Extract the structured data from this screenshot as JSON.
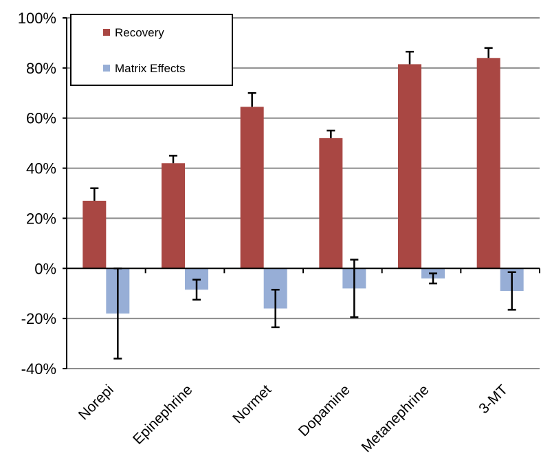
{
  "chart_data": {
    "type": "bar",
    "title": "",
    "xlabel": "",
    "ylabel": "",
    "categories": [
      "Norepi",
      "Epinephrine",
      "Normet",
      "Dopamine",
      "Metanephrine",
      "3-MT"
    ],
    "series": [
      {
        "name": "Recovery",
        "color": "#A94743",
        "values": [
          27,
          42,
          64.5,
          52,
          81.5,
          84
        ],
        "error": [
          5,
          3,
          5.5,
          3,
          5,
          4
        ]
      },
      {
        "name": "Matrix Effects",
        "color": "#97AED6",
        "values": [
          -18,
          -8.5,
          -16,
          -8,
          -4,
          -9
        ],
        "error": [
          18,
          4,
          7.5,
          11.5,
          2,
          7.5
        ]
      }
    ],
    "ylim": [
      -40,
      100
    ],
    "yticks": [
      "-40%",
      "-20%",
      "0%",
      "20%",
      "40%",
      "60%",
      "80%",
      "100%"
    ],
    "grid": true,
    "legend_position": "top-left"
  }
}
